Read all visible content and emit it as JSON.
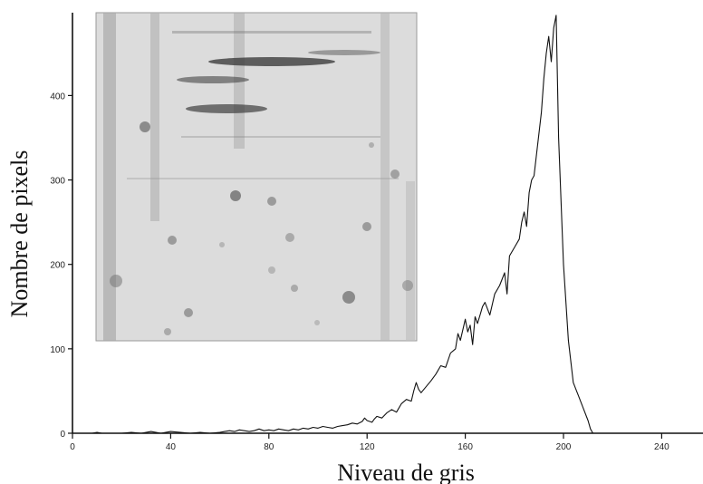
{
  "chart_data": {
    "type": "line",
    "title": "",
    "xlabel": "Niveau de gris",
    "ylabel": "Nombre de pixels",
    "xlim": [
      0,
      256
    ],
    "ylim": [
      0,
      500
    ],
    "xticks": [
      0,
      40,
      80,
      120,
      160,
      200,
      240
    ],
    "yticks": [
      0,
      100,
      200,
      300,
      400
    ],
    "grid": false,
    "legend": "none",
    "series": [
      {
        "color": "#111111",
        "x": [
          0,
          8,
          10,
          12,
          20,
          24,
          28,
          30,
          32,
          34,
          36,
          38,
          40,
          44,
          48,
          52,
          56,
          60,
          62,
          64,
          66,
          68,
          70,
          72,
          74,
          76,
          78,
          80,
          82,
          84,
          86,
          88,
          90,
          92,
          94,
          96,
          98,
          100,
          102,
          104,
          106,
          108,
          110,
          112,
          114,
          116,
          118,
          119,
          120,
          122,
          123,
          124,
          126,
          128,
          130,
          132,
          134,
          136,
          138,
          139,
          140,
          141,
          142,
          144,
          146,
          148,
          150,
          152,
          154,
          156,
          157,
          158,
          160,
          161,
          162,
          163,
          164,
          165,
          166,
          167,
          168,
          170,
          172,
          174,
          176,
          177,
          178,
          180,
          182,
          183,
          184,
          185,
          186,
          187,
          188,
          189,
          190,
          191,
          192,
          193,
          194,
          195,
          196,
          197,
          198,
          200,
          202,
          204,
          206,
          208,
          210,
          211,
          212
        ],
        "y": [
          0,
          0,
          1,
          0,
          0,
          1,
          0,
          1,
          2,
          1,
          0,
          1,
          2,
          1,
          0,
          1,
          0,
          1,
          2,
          3,
          2,
          4,
          3,
          2,
          3,
          5,
          3,
          4,
          3,
          5,
          4,
          3,
          5,
          4,
          6,
          5,
          7,
          6,
          8,
          7,
          6,
          8,
          9,
          10,
          12,
          11,
          14,
          18,
          15,
          13,
          17,
          20,
          18,
          24,
          28,
          25,
          35,
          40,
          38,
          50,
          60,
          52,
          48,
          55,
          62,
          70,
          80,
          78,
          95,
          100,
          118,
          110,
          135,
          120,
          128,
          105,
          138,
          130,
          140,
          150,
          155,
          140,
          165,
          175,
          190,
          165,
          210,
          220,
          230,
          250,
          262,
          245,
          285,
          300,
          305,
          330,
          355,
          380,
          420,
          450,
          470,
          440,
          480,
          495,
          350,
          200,
          110,
          60,
          45,
          30,
          15,
          5,
          0
        ]
      }
    ]
  }
}
